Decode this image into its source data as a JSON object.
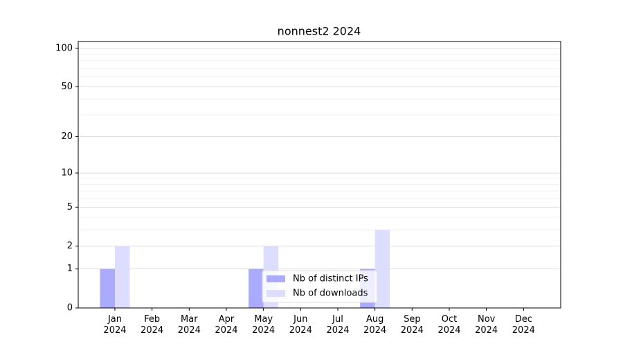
{
  "chart_data": {
    "type": "bar",
    "title": "nonnest2 2024",
    "categories": [
      "Jan 2024",
      "Feb 2024",
      "Mar 2024",
      "Apr 2024",
      "May 2024",
      "Jun 2024",
      "Jul 2024",
      "Aug 2024",
      "Sep 2024",
      "Oct 2024",
      "Nov 2024",
      "Dec 2024"
    ],
    "series": [
      {
        "name": "Nb of distinct IPs",
        "color": "#aaaaff",
        "values": [
          1,
          0,
          0,
          0,
          1,
          0,
          0,
          1,
          0,
          0,
          0,
          0
        ]
      },
      {
        "name": "Nb of downloads",
        "color": "#ddddff",
        "values": [
          2,
          0,
          0,
          0,
          2,
          0,
          0,
          3,
          0,
          0,
          0,
          0
        ]
      }
    ],
    "yscale": "log1p",
    "ylim": [
      0,
      113
    ],
    "yticks": [
      0,
      1,
      2,
      5,
      10,
      20,
      50,
      100
    ],
    "yminorticks": [
      3,
      4,
      6,
      7,
      8,
      9,
      30,
      40,
      60,
      70,
      80,
      90
    ],
    "grid": true,
    "legend": "lower center"
  }
}
